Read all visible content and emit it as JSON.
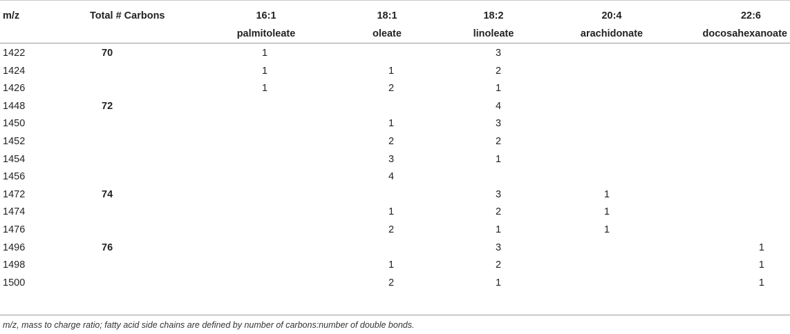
{
  "table": {
    "headers": {
      "mz": "m/z",
      "total": "Total # Carbons",
      "c161_top": "16:1",
      "c161_sub": "palmitoleate",
      "c181_top": "18:1",
      "c181_sub": "oleate",
      "c182_top": "18:2",
      "c182_sub": "linoleate",
      "c204_top": "20:4",
      "c204_sub": "arachidonate",
      "c226_top": "22:6",
      "c226_sub": "docosahexanoate"
    },
    "rows": [
      {
        "mz": "1422",
        "total": "70",
        "c161": "1",
        "c181": "",
        "c182": "3",
        "c204": "",
        "c226": ""
      },
      {
        "mz": "1424",
        "total": "",
        "c161": "1",
        "c181": "1",
        "c182": "2",
        "c204": "",
        "c226": ""
      },
      {
        "mz": "1426",
        "total": "",
        "c161": "1",
        "c181": "2",
        "c182": "1",
        "c204": "",
        "c226": ""
      },
      {
        "mz": "1448",
        "total": "72",
        "c161": "",
        "c181": "",
        "c182": "4",
        "c204": "",
        "c226": ""
      },
      {
        "mz": "1450",
        "total": "",
        "c161": "",
        "c181": "1",
        "c182": "3",
        "c204": "",
        "c226": ""
      },
      {
        "mz": "1452",
        "total": "",
        "c161": "",
        "c181": "2",
        "c182": "2",
        "c204": "",
        "c226": ""
      },
      {
        "mz": "1454",
        "total": "",
        "c161": "",
        "c181": "3",
        "c182": "1",
        "c204": "",
        "c226": ""
      },
      {
        "mz": "1456",
        "total": "",
        "c161": "",
        "c181": "4",
        "c182": "",
        "c204": "",
        "c226": ""
      },
      {
        "mz": "1472",
        "total": "74",
        "c161": "",
        "c181": "",
        "c182": "3",
        "c204": "1",
        "c226": ""
      },
      {
        "mz": "1474",
        "total": "",
        "c161": "",
        "c181": "1",
        "c182": "2",
        "c204": "1",
        "c226": ""
      },
      {
        "mz": "1476",
        "total": "",
        "c161": "",
        "c181": "2",
        "c182": "1",
        "c204": "1",
        "c226": ""
      },
      {
        "mz": "1496",
        "total": "76",
        "c161": "",
        "c181": "",
        "c182": "3",
        "c204": "",
        "c226": "1"
      },
      {
        "mz": "1498",
        "total": "",
        "c161": "",
        "c181": "1",
        "c182": "2",
        "c204": "",
        "c226": "1"
      },
      {
        "mz": "1500",
        "total": "",
        "c161": "",
        "c181": "2",
        "c182": "1",
        "c204": "",
        "c226": "1"
      }
    ]
  },
  "footnote": "m/z, mass to charge ratio; fatty acid side chains are defined by number of carbons:number of double bonds."
}
